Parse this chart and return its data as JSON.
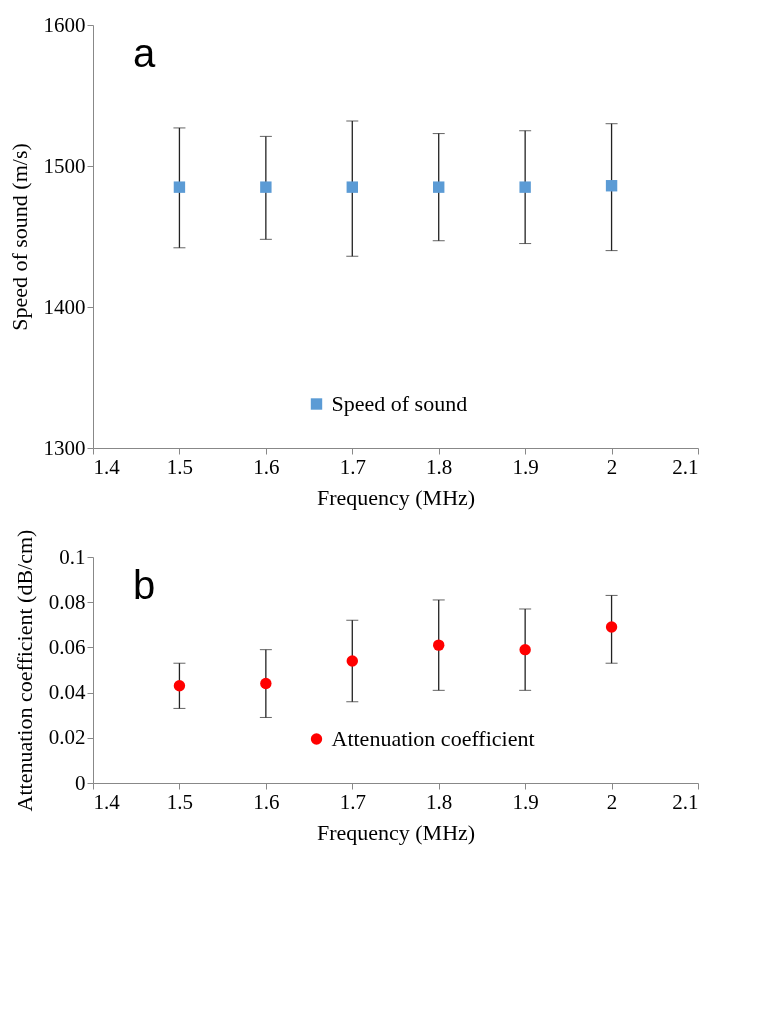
{
  "chart_data": [
    {
      "type": "scatter",
      "annotations": [
        "a"
      ],
      "xlabel": "Frequency (MHz)",
      "ylabel": "Speed of sound (m/s)",
      "x": [
        1.5,
        1.6,
        1.7,
        1.8,
        1.9,
        2.0
      ],
      "series": [
        {
          "name": "Speed of sound",
          "color": "#5b9bd5",
          "values": [
            1485,
            1485,
            1485,
            1485,
            1485,
            1486
          ],
          "errors": [
            [
              1442,
              1527
            ],
            [
              1448,
              1521
            ],
            [
              1436,
              1532
            ],
            [
              1447,
              1523
            ],
            [
              1445,
              1525
            ],
            [
              1440,
              1530
            ]
          ]
        }
      ],
      "xlim": [
        1.4,
        2.1
      ],
      "xticks": [
        1.4,
        1.5,
        1.6,
        1.7,
        1.8,
        1.9,
        2,
        2.1
      ],
      "ylim": [
        1300,
        1600
      ],
      "yticks": [
        1300,
        1400,
        1500,
        1600
      ],
      "marker": "square",
      "legend": "bottom",
      "grid": false
    },
    {
      "type": "scatter",
      "annotations": [
        "b"
      ],
      "xlabel": "Frequency (MHz)",
      "ylabel": "Attenuation coefficient  (dB/cm)",
      "x": [
        1.5,
        1.6,
        1.7,
        1.8,
        1.9,
        2.0
      ],
      "series": [
        {
          "name": "Attenuation coefficient",
          "color": "#ff0000",
          "values": [
            0.043,
            0.044,
            0.054,
            0.061,
            0.059,
            0.069
          ],
          "errors": [
            [
              0.033,
              0.053
            ],
            [
              0.029,
              0.059
            ],
            [
              0.036,
              0.072
            ],
            [
              0.041,
              0.081
            ],
            [
              0.041,
              0.077
            ],
            [
              0.053,
              0.083
            ]
          ]
        }
      ],
      "xlim": [
        1.4,
        2.1
      ],
      "xticks": [
        1.4,
        1.5,
        1.6,
        1.7,
        1.8,
        1.9,
        2,
        2.1
      ],
      "ylim": [
        0,
        0.1
      ],
      "yticks": [
        0,
        0.02,
        0.04,
        0.06,
        0.08,
        0.1
      ],
      "marker": "circle",
      "legend": "bottom",
      "grid": false
    }
  ]
}
